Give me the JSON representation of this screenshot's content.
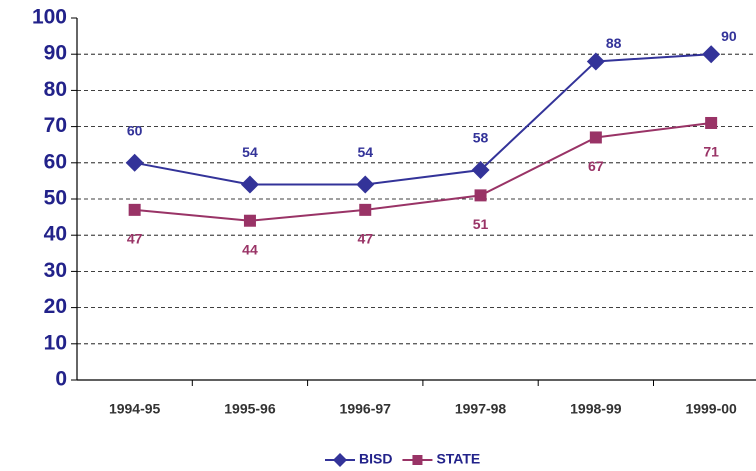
{
  "chart_data": {
    "type": "line",
    "categories": [
      "1994-95",
      "1995-96",
      "1996-97",
      "1997-98",
      "1998-99",
      "1999-00"
    ],
    "series": [
      {
        "name": "BISD",
        "color": "#333399",
        "marker": "diamond",
        "values": [
          60,
          54,
          54,
          58,
          88,
          90
        ]
      },
      {
        "name": "STATE",
        "color": "#993366",
        "marker": "square",
        "values": [
          47,
          44,
          47,
          51,
          67,
          71
        ]
      }
    ],
    "ylim": [
      0,
      100
    ],
    "yticks": [
      0,
      10,
      20,
      30,
      40,
      50,
      60,
      70,
      80,
      90,
      100
    ],
    "grid": true,
    "legend": "bottom"
  }
}
